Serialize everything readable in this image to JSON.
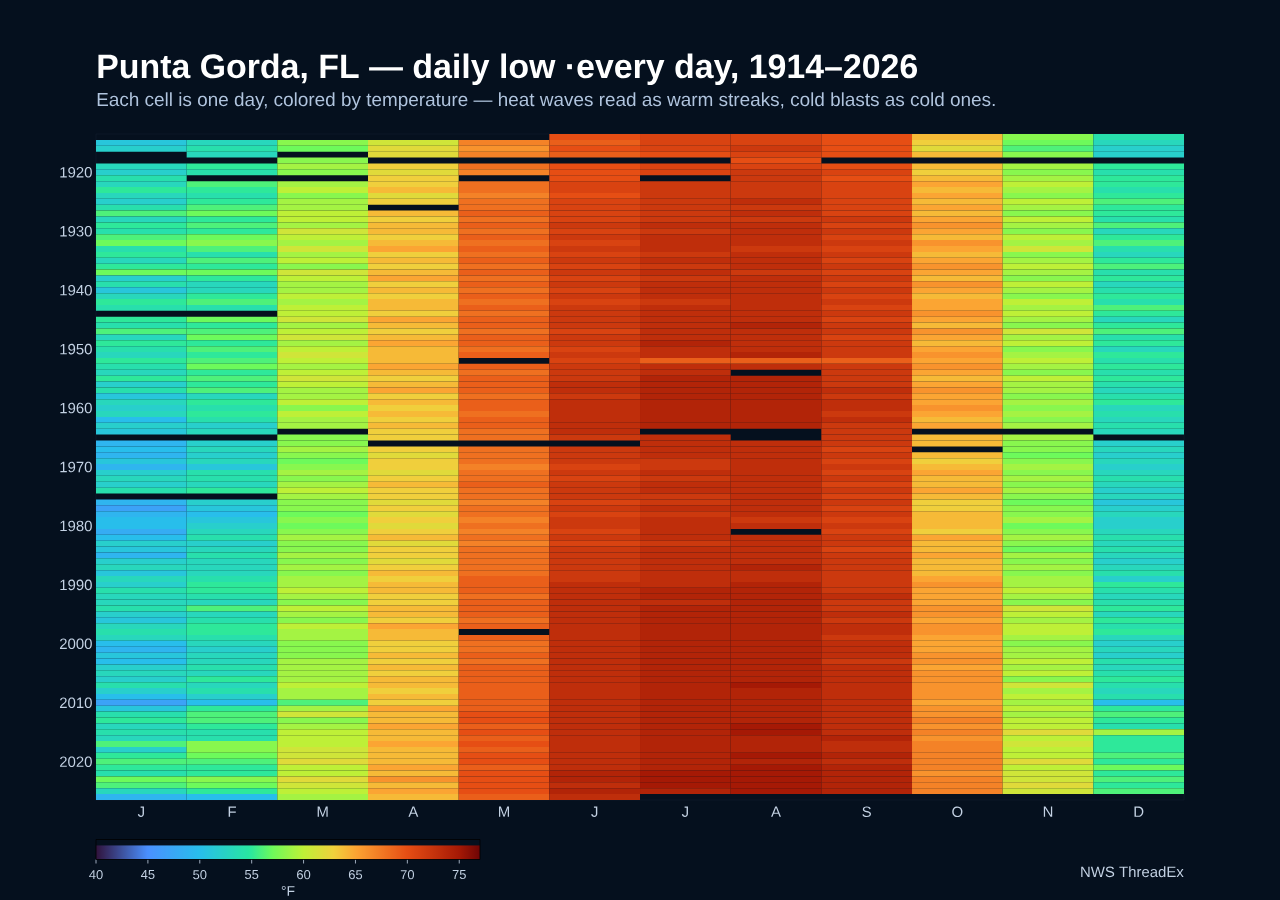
{
  "chart_data": {
    "type": "heatmap",
    "title": "Punta Gorda, FL — daily low ·every day, 1914–2026",
    "subtitle": "Each cell is one day, colored by temperature — heat waves read as warm streaks, cold blasts as cold ones.",
    "categories": [
      "J",
      "F",
      "M",
      "A",
      "M",
      "J",
      "J",
      "A",
      "S",
      "O",
      "N",
      "D"
    ],
    "y_categories": [
      null,
      null,
      null,
      null,
      null,
      null,
      "1920",
      null,
      null,
      null,
      null,
      null,
      null,
      null,
      null,
      null,
      "1930",
      null,
      null,
      null,
      null,
      null,
      null,
      null,
      null,
      null,
      "1940",
      null,
      null,
      null,
      null,
      null,
      null,
      null,
      null,
      null,
      "1950",
      null,
      null,
      null,
      null,
      null,
      null,
      null,
      null,
      null,
      "1960",
      null,
      null,
      null,
      null,
      null,
      null,
      null,
      null,
      null,
      "1970",
      null,
      null,
      null,
      null,
      null,
      null,
      null,
      null,
      null,
      "1980",
      null,
      null,
      null,
      null,
      null,
      null,
      null,
      null,
      null,
      "1990",
      null,
      null,
      null,
      null,
      null,
      null,
      null,
      null,
      null,
      "2000",
      null,
      null,
      null,
      null,
      null,
      null,
      null,
      null,
      null,
      "2010",
      null,
      null,
      null,
      null,
      null,
      null,
      null,
      null,
      null,
      "2020",
      null,
      null,
      null,
      null,
      null,
      null
    ],
    "cells": [
      [
        null,
        null,
        null,
        null,
        null,
        70,
        71,
        71,
        70,
        64,
        58,
        54
      ],
      [
        51,
        53,
        58,
        61,
        67,
        69,
        71,
        71,
        70,
        63,
        57,
        53
      ],
      [
        52,
        54,
        57,
        62,
        66,
        70,
        71,
        72,
        70,
        62,
        56,
        52
      ],
      [
        null,
        53,
        null,
        62,
        67,
        69,
        70,
        71,
        70,
        64,
        58,
        52
      ],
      [
        null,
        null,
        58,
        null,
        null,
        null,
        null,
        70,
        null,
        null,
        null,
        null
      ],
      [
        53,
        55,
        59,
        63,
        68,
        70,
        71,
        71,
        70,
        64,
        59,
        55
      ],
      [
        52,
        54,
        58,
        62,
        67,
        70,
        71,
        72,
        71,
        63,
        58,
        54
      ],
      [
        54,
        null,
        null,
        63,
        null,
        70,
        null,
        72,
        70,
        64,
        59,
        55
      ],
      [
        53,
        56,
        59,
        63,
        68,
        71,
        72,
        72,
        71,
        65,
        60,
        55
      ],
      [
        55,
        55,
        60,
        64,
        68,
        71,
        72,
        72,
        71,
        64,
        59,
        54
      ],
      [
        53,
        54,
        58,
        62,
        67,
        70,
        72,
        72,
        71,
        65,
        58,
        55
      ],
      [
        52,
        55,
        59,
        63,
        68,
        71,
        72,
        73,
        71,
        64,
        60,
        56
      ],
      [
        54,
        56,
        59,
        null,
        68,
        71,
        72,
        72,
        71,
        65,
        59,
        55
      ],
      [
        56,
        57,
        60,
        64,
        69,
        71,
        72,
        73,
        71,
        64,
        58,
        55
      ],
      [
        53,
        55,
        60,
        63,
        68,
        71,
        72,
        72,
        72,
        65,
        60,
        54
      ],
      [
        55,
        56,
        59,
        64,
        69,
        72,
        73,
        73,
        71,
        66,
        59,
        56
      ],
      [
        54,
        55,
        61,
        64,
        68,
        71,
        72,
        73,
        72,
        65,
        58,
        53
      ],
      [
        56,
        57,
        60,
        63,
        69,
        72,
        73,
        73,
        71,
        64,
        60,
        55
      ],
      [
        57,
        58,
        59,
        64,
        68,
        71,
        73,
        73,
        72,
        66,
        59,
        56
      ],
      [
        54,
        56,
        61,
        65,
        69,
        72,
        73,
        72,
        71,
        65,
        61,
        54
      ],
      [
        55,
        54,
        59,
        63,
        68,
        71,
        72,
        73,
        72,
        64,
        58,
        53
      ],
      [
        53,
        56,
        60,
        64,
        69,
        72,
        73,
        73,
        71,
        65,
        59,
        55
      ],
      [
        55,
        55,
        58,
        63,
        68,
        71,
        72,
        73,
        72,
        66,
        60,
        56
      ],
      [
        57,
        57,
        61,
        64,
        69,
        72,
        73,
        72,
        71,
        65,
        59,
        54
      ],
      [
        52,
        55,
        60,
        65,
        68,
        71,
        72,
        73,
        72,
        64,
        58,
        55
      ],
      [
        54,
        53,
        59,
        63,
        69,
        72,
        73,
        73,
        71,
        66,
        60,
        53
      ],
      [
        51,
        53,
        59,
        64,
        68,
        71,
        73,
        73,
        72,
        65,
        59,
        54
      ],
      [
        53,
        55,
        60,
        63,
        69,
        72,
        73,
        73,
        71,
        64,
        58,
        55
      ],
      [
        55,
        56,
        59,
        64,
        68,
        71,
        72,
        73,
        72,
        65,
        60,
        54
      ],
      [
        54,
        54,
        60,
        64,
        69,
        72,
        73,
        73,
        71,
        65,
        59,
        56
      ],
      [
        null,
        null,
        60,
        63,
        68,
        72,
        73,
        73,
        72,
        66,
        60,
        55
      ],
      [
        55,
        57,
        61,
        65,
        69,
        72,
        73,
        73,
        71,
        65,
        59,
        53
      ],
      [
        54,
        55,
        59,
        64,
        69,
        72,
        73,
        74,
        72,
        64,
        58,
        55
      ],
      [
        56,
        56,
        60,
        63,
        68,
        71,
        73,
        73,
        72,
        66,
        61,
        56
      ],
      [
        53,
        57,
        61,
        64,
        69,
        72,
        73,
        73,
        71,
        65,
        59,
        54
      ],
      [
        55,
        55,
        59,
        65,
        69,
        72,
        74,
        73,
        72,
        64,
        60,
        55
      ],
      [
        54,
        56,
        60,
        64,
        68,
        71,
        73,
        73,
        72,
        65,
        58,
        53
      ],
      [
        53,
        55,
        61,
        64,
        69,
        72,
        73,
        74,
        72,
        66,
        59,
        55
      ],
      [
        55,
        56,
        60,
        64,
        null,
        71,
        69,
        69,
        69,
        65,
        60,
        54
      ],
      [
        54,
        57,
        59,
        65,
        69,
        72,
        73,
        73,
        72,
        66,
        59,
        55
      ],
      [
        53,
        55,
        60,
        64,
        68,
        72,
        73,
        null,
        72,
        65,
        58,
        54
      ],
      [
        55,
        56,
        61,
        63,
        69,
        72,
        74,
        74,
        72,
        64,
        60,
        55
      ],
      [
        52,
        55,
        60,
        64,
        69,
        73,
        74,
        74,
        72,
        65,
        59,
        54
      ],
      [
        54,
        56,
        59,
        65,
        69,
        73,
        74,
        74,
        73,
        66,
        59,
        53
      ],
      [
        51,
        53,
        59,
        63,
        68,
        72,
        74,
        74,
        72,
        65,
        58,
        54
      ],
      [
        53,
        55,
        60,
        64,
        69,
        73,
        74,
        74,
        73,
        65,
        59,
        55
      ],
      [
        52,
        54,
        58,
        63,
        69,
        73,
        74,
        74,
        73,
        66,
        58,
        53
      ],
      [
        53,
        55,
        60,
        64,
        68,
        73,
        74,
        74,
        72,
        65,
        59,
        54
      ],
      [
        50,
        54,
        59,
        63,
        69,
        73,
        74,
        74,
        73,
        64,
        58,
        53
      ],
      [
        52,
        52,
        59,
        64,
        69,
        73,
        74,
        74,
        72,
        65,
        59,
        54
      ],
      [
        51,
        53,
        null,
        63,
        68,
        73,
        null,
        null,
        72,
        null,
        null,
        53
      ],
      [
        null,
        null,
        58,
        63,
        68,
        72,
        73,
        null,
        72,
        64,
        59,
        null
      ],
      [
        49,
        52,
        58,
        null,
        null,
        null,
        73,
        73,
        72,
        64,
        58,
        52
      ],
      [
        50,
        53,
        59,
        63,
        68,
        72,
        73,
        73,
        71,
        null,
        58,
        53
      ],
      [
        49,
        52,
        58,
        62,
        68,
        72,
        73,
        73,
        72,
        64,
        57,
        52
      ],
      [
        51,
        53,
        57,
        63,
        68,
        72,
        72,
        73,
        71,
        63,
        58,
        53
      ],
      [
        49,
        51,
        58,
        63,
        67,
        71,
        72,
        73,
        72,
        64,
        59,
        52
      ],
      [
        52,
        54,
        59,
        62,
        68,
        72,
        73,
        73,
        71,
        65,
        58,
        53
      ],
      [
        53,
        54,
        58,
        63,
        68,
        71,
        72,
        73,
        72,
        64,
        59,
        54
      ],
      [
        52,
        53,
        59,
        64,
        69,
        72,
        73,
        73,
        71,
        64,
        58,
        53
      ],
      [
        54,
        55,
        60,
        63,
        68,
        72,
        73,
        73,
        72,
        65,
        59,
        52
      ],
      [
        null,
        null,
        59,
        63,
        68,
        72,
        72,
        73,
        71,
        64,
        58,
        53
      ],
      [
        49,
        52,
        58,
        62,
        67,
        71,
        72,
        73,
        72,
        63,
        57,
        51
      ],
      [
        47,
        51,
        58,
        63,
        68,
        72,
        73,
        73,
        71,
        63,
        58,
        52
      ],
      [
        49,
        50,
        57,
        62,
        68,
        71,
        72,
        73,
        72,
        64,
        58,
        53
      ],
      [
        50,
        51,
        58,
        63,
        67,
        72,
        73,
        72,
        71,
        64,
        59,
        52
      ],
      [
        50,
        52,
        57,
        62,
        68,
        72,
        73,
        73,
        72,
        64,
        57,
        52
      ],
      [
        48,
        53,
        58,
        63,
        67,
        71,
        73,
        null,
        71,
        63,
        58,
        53
      ],
      [
        50,
        54,
        59,
        64,
        68,
        72,
        73,
        73,
        72,
        65,
        59,
        54
      ],
      [
        52,
        52,
        58,
        62,
        67,
        71,
        72,
        73,
        72,
        64,
        58,
        53
      ],
      [
        51,
        53,
        58,
        63,
        68,
        72,
        73,
        73,
        71,
        64,
        57,
        54
      ],
      [
        49,
        54,
        59,
        63,
        68,
        72,
        73,
        73,
        72,
        65,
        59,
        53
      ],
      [
        52,
        53,
        58,
        62,
        68,
        72,
        73,
        73,
        72,
        64,
        58,
        52
      ],
      [
        53,
        53,
        59,
        63,
        68,
        72,
        73,
        74,
        72,
        64,
        59,
        53
      ],
      [
        51,
        53,
        58,
        64,
        68,
        72,
        73,
        73,
        72,
        64,
        58,
        54
      ],
      [
        53,
        54,
        59,
        63,
        69,
        72,
        73,
        73,
        72,
        65,
        59,
        52
      ],
      [
        52,
        55,
        59,
        64,
        69,
        73,
        73,
        74,
        72,
        66,
        59,
        55
      ],
      [
        54,
        55,
        60,
        64,
        69,
        73,
        74,
        74,
        72,
        65,
        60,
        54
      ],
      [
        53,
        54,
        59,
        63,
        68,
        73,
        74,
        74,
        73,
        65,
        59,
        53
      ],
      [
        53,
        53,
        58,
        63,
        69,
        73,
        73,
        74,
        72,
        65,
        58,
        54
      ],
      [
        54,
        56,
        60,
        64,
        69,
        73,
        74,
        74,
        72,
        66,
        61,
        55
      ],
      [
        52,
        53,
        59,
        64,
        69,
        73,
        74,
        74,
        73,
        66,
        60,
        53
      ],
      [
        51,
        54,
        58,
        63,
        68,
        73,
        74,
        74,
        72,
        65,
        59,
        55
      ],
      [
        53,
        55,
        60,
        65,
        69,
        73,
        74,
        74,
        73,
        66,
        60,
        54
      ],
      [
        54,
        55,
        59,
        64,
        null,
        73,
        74,
        74,
        73,
        66,
        60,
        55
      ],
      [
        53,
        54,
        59,
        64,
        69,
        73,
        74,
        74,
        72,
        65,
        59,
        53
      ],
      [
        50,
        53,
        58,
        63,
        68,
        73,
        74,
        74,
        73,
        65,
        58,
        52
      ],
      [
        49,
        52,
        58,
        63,
        68,
        73,
        74,
        74,
        73,
        65,
        59,
        53
      ],
      [
        51,
        53,
        58,
        64,
        69,
        73,
        74,
        74,
        73,
        66,
        59,
        52
      ],
      [
        50,
        53,
        59,
        63,
        68,
        73,
        74,
        74,
        72,
        66,
        60,
        54
      ],
      [
        52,
        54,
        59,
        64,
        69,
        73,
        74,
        74,
        73,
        65,
        59,
        53
      ],
      [
        53,
        53,
        59,
        63,
        69,
        73,
        74,
        74,
        73,
        66,
        60,
        54
      ],
      [
        52,
        55,
        59,
        64,
        69,
        73,
        74,
        74,
        73,
        66,
        58,
        55
      ],
      [
        54,
        53,
        60,
        64,
        69,
        73,
        74,
        75,
        73,
        66,
        61,
        54
      ],
      [
        52,
        54,
        59,
        63,
        69,
        73,
        74,
        74,
        73,
        66,
        59,
        53
      ],
      [
        50,
        52,
        59,
        64,
        69,
        73,
        74,
        74,
        73,
        66,
        60,
        54
      ],
      [
        47,
        50,
        56,
        63,
        69,
        73,
        74,
        74,
        73,
        65,
        59,
        50
      ],
      [
        51,
        55,
        59,
        65,
        69,
        73,
        74,
        74,
        73,
        66,
        60,
        55
      ],
      [
        54,
        56,
        61,
        64,
        70,
        73,
        74,
        74,
        73,
        66,
        59,
        56
      ],
      [
        55,
        56,
        58,
        64,
        70,
        73,
        74,
        74,
        73,
        67,
        60,
        55
      ],
      [
        53,
        55,
        59,
        65,
        69,
        73,
        74,
        75,
        73,
        66,
        60,
        54
      ],
      [
        54,
        54,
        60,
        64,
        70,
        73,
        74,
        75,
        73,
        67,
        62,
        59
      ],
      [
        53,
        54,
        60,
        64,
        69,
        73,
        74,
        74,
        74,
        66,
        60,
        55
      ],
      [
        56,
        58,
        60,
        65,
        70,
        73,
        74,
        74,
        73,
        67,
        61,
        55
      ],
      [
        52,
        58,
        61,
        64,
        69,
        73,
        74,
        74,
        73,
        67,
        60,
        55
      ],
      [
        55,
        57,
        61,
        64,
        70,
        73,
        74,
        75,
        74,
        67,
        60,
        56
      ],
      [
        56,
        56,
        62,
        64,
        70,
        73,
        74,
        74,
        73,
        67,
        62,
        55
      ],
      [
        55,
        55,
        60,
        65,
        69,
        73,
        74,
        75,
        74,
        67,
        60,
        57
      ],
      [
        54,
        55,
        60,
        64,
        70,
        74,
        75,
        75,
        74,
        66,
        61,
        55
      ],
      [
        57,
        58,
        62,
        66,
        70,
        74,
        75,
        75,
        74,
        67,
        61,
        56
      ],
      [
        56,
        57,
        61,
        64,
        70,
        73,
        75,
        75,
        74,
        67,
        62,
        55
      ],
      [
        53,
        55,
        60,
        65,
        70,
        74,
        74,
        75,
        74,
        67,
        61,
        56
      ],
      [
        49,
        50,
        59,
        64,
        69,
        73,
        null,
        null,
        null,
        null,
        null,
        null
      ]
    ],
    "clim": [
      40,
      77
    ],
    "cticks": [
      40,
      45,
      50,
      55,
      60,
      65,
      70,
      75
    ],
    "clabel": "°F",
    "annotations": [
      "NWS ThreadEx"
    ]
  }
}
